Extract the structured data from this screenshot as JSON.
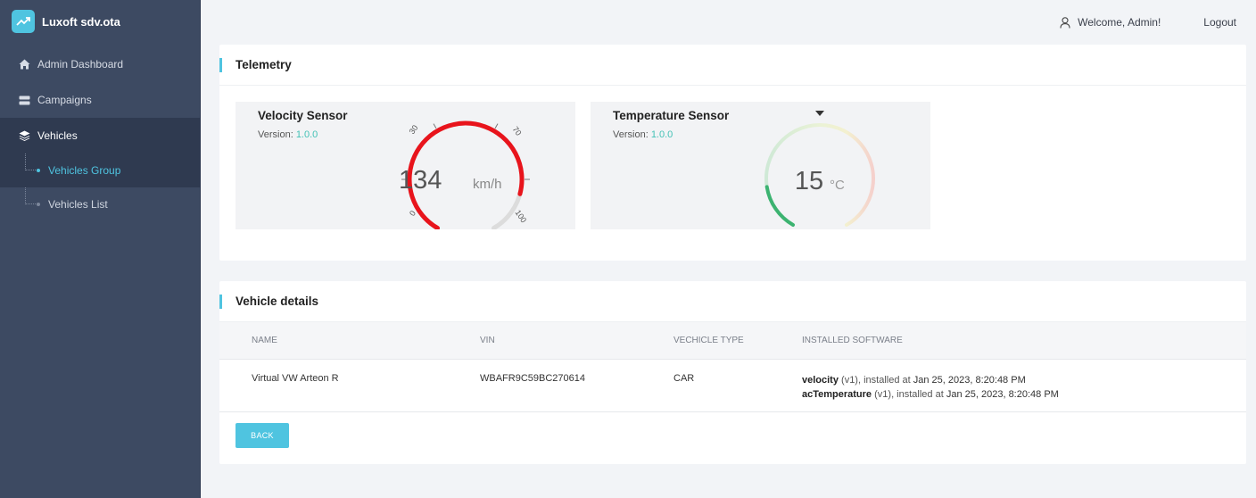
{
  "brand": {
    "name": "Luxoft sdv.ota",
    "logo_icon": "trend-up-icon"
  },
  "sidebar": {
    "items": [
      {
        "label": "Admin Dashboard",
        "icon": "home-icon"
      },
      {
        "label": "Campaigns",
        "icon": "server-icon"
      },
      {
        "label": "Vehicles",
        "icon": "layers-icon"
      }
    ],
    "sub_items": [
      {
        "label": "Vehicles Group",
        "active": true
      },
      {
        "label": "Vehicles List",
        "active": false
      }
    ]
  },
  "header": {
    "welcome": "Welcome, Admin!",
    "logout": "Logout"
  },
  "telemetry": {
    "title": "Telemetry",
    "version_label": "Version:",
    "velocity": {
      "title": "Velocity Sensor",
      "version": "1.0.0",
      "value": "134",
      "unit": "km/h",
      "ticks": [
        "0",
        "30",
        "70",
        "100"
      ],
      "fill_fraction": 0.85,
      "color": "#e8141c"
    },
    "temperature": {
      "title": "Temperature Sensor",
      "version": "1.0.0",
      "value": "15",
      "unit": "°C",
      "fill_fraction": 0.17,
      "color": "#3cb371"
    }
  },
  "vehicle_details": {
    "title": "Vehicle details",
    "columns": [
      "NAME",
      "VIN",
      "VECHICLE TYPE",
      "INSTALLED SOFTWARE"
    ],
    "row": {
      "name": "Virtual VW Arteon R",
      "vin": "WBAFR9C59BC270614",
      "type": "CAR",
      "software": [
        {
          "name": "velocity",
          "version": "(v1), installed at",
          "date": "Jan 25, 2023, 8:20:48 PM"
        },
        {
          "name": "acTemperature",
          "version": "(v1), installed at",
          "date": "Jan 25, 2023, 8:20:48 PM"
        }
      ]
    },
    "back_label": "BACK"
  },
  "colors": {
    "accent": "#4fc4e0",
    "sidebar": "#3d4a62",
    "version": "#44c2b6"
  }
}
